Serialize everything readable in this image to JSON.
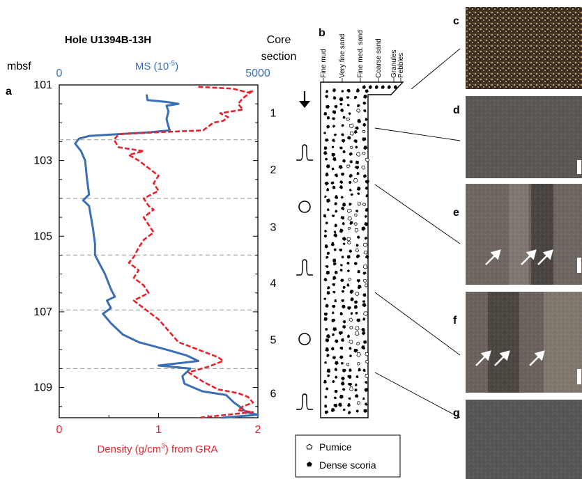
{
  "panels": {
    "a": "a",
    "b": "b",
    "c": "c",
    "d": "d",
    "e": "e",
    "f": "f",
    "g": "g"
  },
  "chart_data": {
    "type": "line",
    "title": "Hole U1394B-13H",
    "depth_unit": "mbsf",
    "core_section_label_1": "Core",
    "core_section_label_2": "section",
    "y_axis": {
      "range": [
        101,
        109.8
      ],
      "ticks": [
        101,
        103,
        105,
        107,
        109
      ],
      "reversed": true
    },
    "top_axis": {
      "label_prefix": "MS (10",
      "label_exp": "-5",
      "label_suffix": ")",
      "range": [
        0,
        5000
      ],
      "ticks": [
        0,
        5000
      ],
      "color": "#3a6eb5"
    },
    "bottom_axis": {
      "label_prefix": "Density (g/cm",
      "label_exp": "3",
      "label_suffix": ") from GRA",
      "range": [
        0,
        2
      ],
      "ticks": [
        0,
        1,
        2
      ],
      "color": "#e8212b"
    },
    "section_boundaries": [
      102.45,
      104.0,
      105.5,
      106.95,
      108.5
    ],
    "section_numbers": [
      "1",
      "2",
      "3",
      "4",
      "5",
      "6"
    ],
    "series": [
      {
        "axis": "top",
        "color": "#3a6eb5",
        "style": "solid",
        "points": [
          [
            2200,
            101.25
          ],
          [
            2220,
            101.4
          ],
          [
            2700,
            101.45
          ],
          [
            3000,
            101.5
          ],
          [
            2700,
            101.55
          ],
          [
            2750,
            101.7
          ],
          [
            2700,
            101.9
          ],
          [
            2750,
            102.1
          ],
          [
            2780,
            102.2
          ],
          [
            2300,
            102.25
          ],
          [
            1500,
            102.3
          ],
          [
            750,
            102.35
          ],
          [
            500,
            102.42
          ],
          [
            400,
            102.55
          ],
          [
            550,
            102.75
          ],
          [
            650,
            103.0
          ],
          [
            700,
            103.5
          ],
          [
            750,
            103.9
          ],
          [
            600,
            104.05
          ],
          [
            750,
            104.2
          ],
          [
            800,
            104.5
          ],
          [
            850,
            104.8
          ],
          [
            900,
            105.2
          ],
          [
            900,
            105.5
          ],
          [
            1000,
            105.7
          ],
          [
            1150,
            106.0
          ],
          [
            1300,
            106.4
          ],
          [
            1400,
            106.6
          ],
          [
            1200,
            106.7
          ],
          [
            1300,
            106.9
          ],
          [
            1100,
            107.05
          ],
          [
            1300,
            107.3
          ],
          [
            1600,
            107.6
          ],
          [
            2000,
            107.8
          ],
          [
            2700,
            108.0
          ],
          [
            3200,
            108.15
          ],
          [
            3500,
            108.3
          ],
          [
            2500,
            108.42
          ],
          [
            3300,
            108.5
          ],
          [
            3100,
            108.7
          ],
          [
            3150,
            108.9
          ],
          [
            3600,
            109.1
          ],
          [
            4200,
            109.2
          ],
          [
            4300,
            109.3
          ],
          [
            4400,
            109.4
          ],
          [
            4600,
            109.55
          ],
          [
            4700,
            109.65
          ],
          [
            5000,
            109.72
          ],
          [
            4100,
            109.8
          ]
        ]
      },
      {
        "axis": "bottom",
        "color": "#e8212b",
        "style": "dashed",
        "points": [
          [
            1.4,
            101.05
          ],
          [
            1.75,
            101.1
          ],
          [
            1.9,
            101.2
          ],
          [
            1.95,
            101.15
          ],
          [
            1.85,
            101.35
          ],
          [
            1.8,
            101.5
          ],
          [
            1.85,
            101.65
          ],
          [
            1.62,
            101.75
          ],
          [
            1.7,
            101.85
          ],
          [
            1.65,
            101.95
          ],
          [
            1.55,
            102.0
          ],
          [
            1.5,
            102.1
          ],
          [
            1.45,
            102.2
          ],
          [
            1.0,
            102.25
          ],
          [
            0.6,
            102.3
          ],
          [
            0.55,
            102.45
          ],
          [
            0.6,
            102.65
          ],
          [
            0.85,
            102.75
          ],
          [
            0.7,
            102.85
          ],
          [
            0.8,
            103.0
          ],
          [
            0.9,
            103.2
          ],
          [
            1.0,
            103.4
          ],
          [
            0.95,
            103.6
          ],
          [
            1.0,
            103.8
          ],
          [
            0.85,
            104.0
          ],
          [
            0.9,
            104.2
          ],
          [
            0.95,
            104.3
          ],
          [
            0.85,
            104.5
          ],
          [
            0.9,
            104.7
          ],
          [
            0.95,
            104.9
          ],
          [
            0.85,
            105.1
          ],
          [
            0.8,
            105.3
          ],
          [
            0.75,
            105.55
          ],
          [
            0.7,
            105.7
          ],
          [
            0.8,
            105.9
          ],
          [
            0.75,
            106.1
          ],
          [
            0.85,
            106.3
          ],
          [
            0.9,
            106.5
          ],
          [
            0.75,
            106.7
          ],
          [
            0.85,
            106.9
          ],
          [
            1.0,
            107.2
          ],
          [
            1.1,
            107.5
          ],
          [
            1.2,
            107.8
          ],
          [
            1.4,
            108.0
          ],
          [
            1.6,
            108.2
          ],
          [
            1.65,
            108.3
          ],
          [
            1.5,
            108.45
          ],
          [
            1.3,
            108.6
          ],
          [
            1.45,
            108.85
          ],
          [
            1.6,
            109.05
          ],
          [
            1.8,
            109.15
          ],
          [
            1.9,
            109.25
          ],
          [
            1.95,
            109.4
          ],
          [
            1.85,
            109.5
          ],
          [
            1.8,
            109.6
          ],
          [
            1.95,
            109.65
          ],
          [
            1.4,
            109.8
          ]
        ]
      }
    ]
  },
  "grain_size_labels": [
    "Fine mud",
    "Very fine sand",
    "Fine med. sand",
    "Coarse sand",
    "Granules",
    "Pebbles"
  ],
  "legend": {
    "pumice": "Pumice",
    "scoria": "Dense scoria"
  },
  "structure_symbols": [
    "arrow-down",
    "normal-grading",
    "circle",
    "normal-grading",
    "circle",
    "normal-grading"
  ],
  "photos": [
    {
      "id": "c",
      "color": "#3a2a1e"
    },
    {
      "id": "d",
      "color": "#5a5755"
    },
    {
      "id": "e",
      "color": "#6e6660"
    },
    {
      "id": "f",
      "color": "#6b635b"
    },
    {
      "id": "g",
      "color": "#585654"
    }
  ]
}
